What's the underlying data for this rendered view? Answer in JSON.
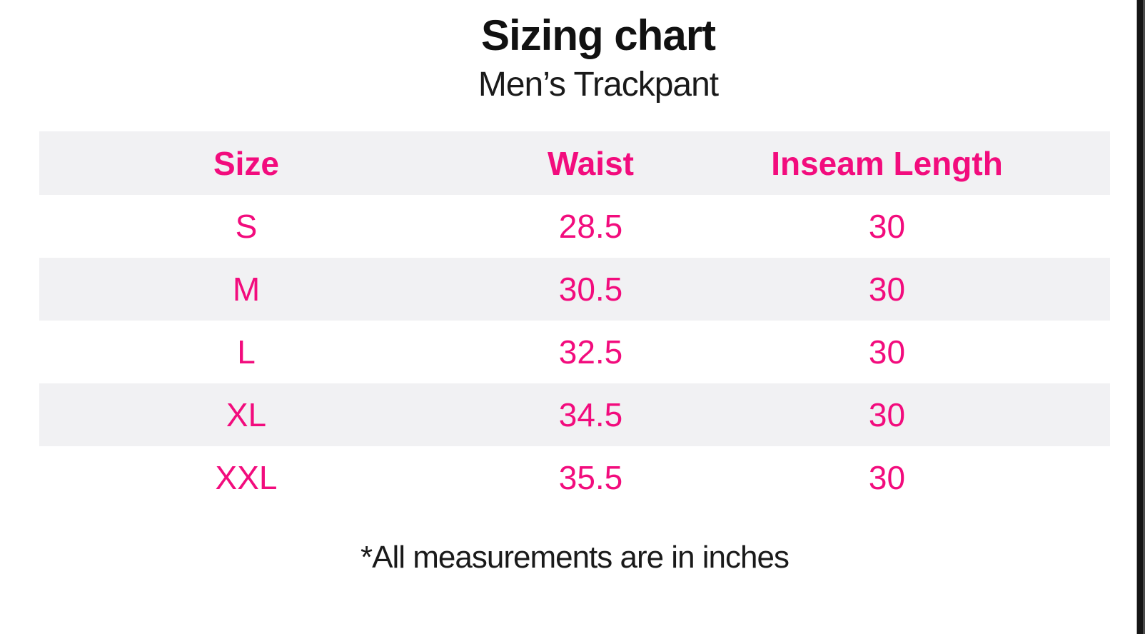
{
  "page": {
    "title": "Sizing chart",
    "subtitle": "Men’s Trackpant",
    "footnote": "*All measurements are in inches"
  },
  "chart_data": {
    "type": "table",
    "title": "Sizing chart",
    "subtitle": "Men’s Trackpant",
    "columns": [
      "Size",
      "Waist",
      "Inseam Length"
    ],
    "rows": [
      [
        "S",
        "28.5",
        "30"
      ],
      [
        "M",
        "30.5",
        "30"
      ],
      [
        "L",
        "32.5",
        "30"
      ],
      [
        "XL",
        "34.5",
        "30"
      ],
      [
        "XXL",
        "35.5",
        "30"
      ]
    ],
    "units_note": "*All measurements are in inches",
    "layout": {
      "alternating_row_shading": true,
      "shaded_rows": [
        "header",
        "M",
        "XL"
      ]
    }
  },
  "colors": {
    "accent_pink": "#f20c7d",
    "row_alt_bg": "#f1f1f3",
    "text_black": "#1a1a1a",
    "edge_bar": "#161616"
  }
}
